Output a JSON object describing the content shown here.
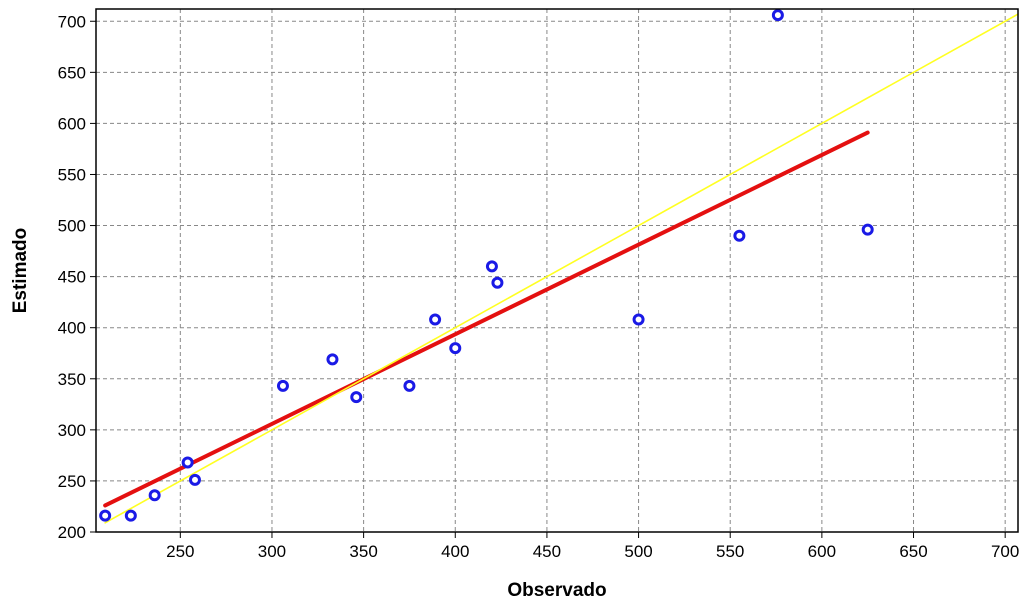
{
  "chart_data": {
    "type": "scatter",
    "title": "",
    "xlabel": "Observado",
    "ylabel": "Estimado",
    "xlim": [
      204,
      707
    ],
    "ylim": [
      200,
      712
    ],
    "x_ticks": [
      250,
      300,
      350,
      400,
      450,
      500,
      550,
      600,
      650,
      700
    ],
    "y_ticks": [
      200,
      250,
      300,
      350,
      400,
      450,
      500,
      550,
      600,
      650,
      700
    ],
    "grid": true,
    "legend": "none",
    "points": [
      {
        "x": 209,
        "y": 216
      },
      {
        "x": 223,
        "y": 216
      },
      {
        "x": 236,
        "y": 236
      },
      {
        "x": 254,
        "y": 268
      },
      {
        "x": 258,
        "y": 251
      },
      {
        "x": 306,
        "y": 343
      },
      {
        "x": 333,
        "y": 369
      },
      {
        "x": 346,
        "y": 332
      },
      {
        "x": 375,
        "y": 343
      },
      {
        "x": 389,
        "y": 408
      },
      {
        "x": 400,
        "y": 380
      },
      {
        "x": 420,
        "y": 460
      },
      {
        "x": 423,
        "y": 444
      },
      {
        "x": 500,
        "y": 408
      },
      {
        "x": 555,
        "y": 490
      },
      {
        "x": 576,
        "y": 706
      },
      {
        "x": 625,
        "y": 496
      }
    ],
    "lines": [
      {
        "kind": "regression",
        "color": "#e41010",
        "from": [
          209,
          226
        ],
        "to": [
          625,
          591
        ]
      },
      {
        "kind": "identity",
        "color": "#ffff22",
        "from": [
          209,
          209
        ],
        "to": [
          707,
          707
        ]
      }
    ],
    "colors": {
      "points": "#1a1ae6",
      "grid": "#888888",
      "axes": "#000000"
    }
  }
}
